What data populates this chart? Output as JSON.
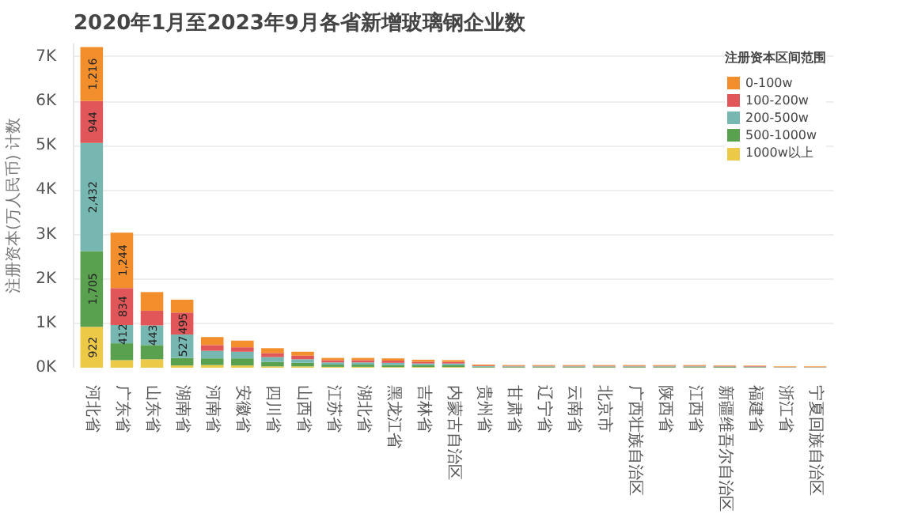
{
  "chart_data": {
    "type": "bar",
    "stacked": true,
    "title": "2020年1月至2023年9月各省新增玻璃钢企业数",
    "ylabel": "注册资本(万人民币) 计数",
    "legend_title": "注册资本区间范围",
    "legend": "top right",
    "grid": "y",
    "categories": [
      "河北省",
      "广东省",
      "山东省",
      "湖南省",
      "河南省",
      "安徽省",
      "四川省",
      "山西省",
      "江苏省",
      "湖北省",
      "黑龙江省",
      "吉林省",
      "内蒙古自治区",
      "贵州省",
      "甘肃省",
      "辽宁省",
      "云南省",
      "北京市",
      "广西壮族自治区",
      "陕西省",
      "江西省",
      "新疆维吾尔自治区",
      "福建省",
      "浙江省",
      "宁夏回族自治区"
    ],
    "ylim": [
      0,
      7300
    ],
    "yticks": [
      {
        "value": 0,
        "label": "0K"
      },
      {
        "value": 1000,
        "label": "1K"
      },
      {
        "value": 2000,
        "label": "2K"
      },
      {
        "value": 3000,
        "label": "3K"
      },
      {
        "value": 4000,
        "label": "4K"
      },
      {
        "value": 5000,
        "label": "5K"
      },
      {
        "value": 6000,
        "label": "6K"
      },
      {
        "value": 7000,
        "label": "7K"
      }
    ],
    "series": [
      {
        "name": "1000w以上",
        "color": "#edc948",
        "values": [
          922,
          170,
          190,
          50,
          60,
          50,
          30,
          30,
          20,
          20,
          15,
          15,
          15,
          5,
          5,
          5,
          5,
          5,
          5,
          5,
          5,
          3,
          3,
          2,
          2
        ],
        "value_labels": [
          "922",
          null,
          null,
          null,
          null,
          null,
          null,
          null,
          null,
          null,
          null,
          null,
          null,
          null,
          null,
          null,
          null,
          null,
          null,
          null,
          null,
          null,
          null,
          null,
          null
        ]
      },
      {
        "name": "500-1000w",
        "color": "#59a14f",
        "values": [
          1705,
          380,
          320,
          170,
          150,
          160,
          100,
          80,
          50,
          50,
          45,
          40,
          40,
          15,
          15,
          15,
          15,
          15,
          15,
          15,
          15,
          15,
          12,
          5,
          5
        ],
        "value_labels": [
          "1,705",
          null,
          null,
          null,
          null,
          null,
          null,
          null,
          null,
          null,
          null,
          null,
          null,
          null,
          null,
          null,
          null,
          null,
          null,
          null,
          null,
          null,
          null,
          null,
          null
        ]
      },
      {
        "name": "200-500w",
        "color": "#76b7b2",
        "values": [
          2432,
          412,
          443,
          527,
          170,
          150,
          110,
          80,
          50,
          50,
          50,
          40,
          40,
          15,
          12,
          12,
          12,
          12,
          12,
          12,
          12,
          10,
          10,
          5,
          5
        ],
        "value_labels": [
          "2,432",
          "412",
          "443",
          "527",
          null,
          null,
          null,
          null,
          null,
          null,
          null,
          null,
          null,
          null,
          null,
          null,
          null,
          null,
          null,
          null,
          null,
          null,
          null,
          null,
          null
        ]
      },
      {
        "name": "100-200w",
        "color": "#e15759",
        "values": [
          944,
          834,
          330,
          495,
          130,
          100,
          90,
          80,
          50,
          50,
          50,
          40,
          35,
          15,
          13,
          13,
          13,
          13,
          13,
          13,
          13,
          10,
          10,
          5,
          5
        ],
        "value_labels": [
          "944",
          "834",
          null,
          "495",
          null,
          null,
          null,
          null,
          null,
          null,
          null,
          null,
          null,
          null,
          null,
          null,
          null,
          null,
          null,
          null,
          null,
          null,
          null,
          null,
          null
        ]
      },
      {
        "name": "0-100w",
        "color": "#f28e2b",
        "values": [
          1216,
          1244,
          420,
          290,
          180,
          150,
          110,
          90,
          50,
          50,
          50,
          45,
          40,
          20,
          15,
          15,
          15,
          15,
          15,
          15,
          15,
          12,
          12,
          13,
          13
        ],
        "value_labels": [
          "1,216",
          "1,244",
          null,
          null,
          null,
          null,
          null,
          null,
          null,
          null,
          null,
          null,
          null,
          null,
          null,
          null,
          null,
          null,
          null,
          null,
          null,
          null,
          null,
          null,
          null
        ]
      }
    ]
  }
}
